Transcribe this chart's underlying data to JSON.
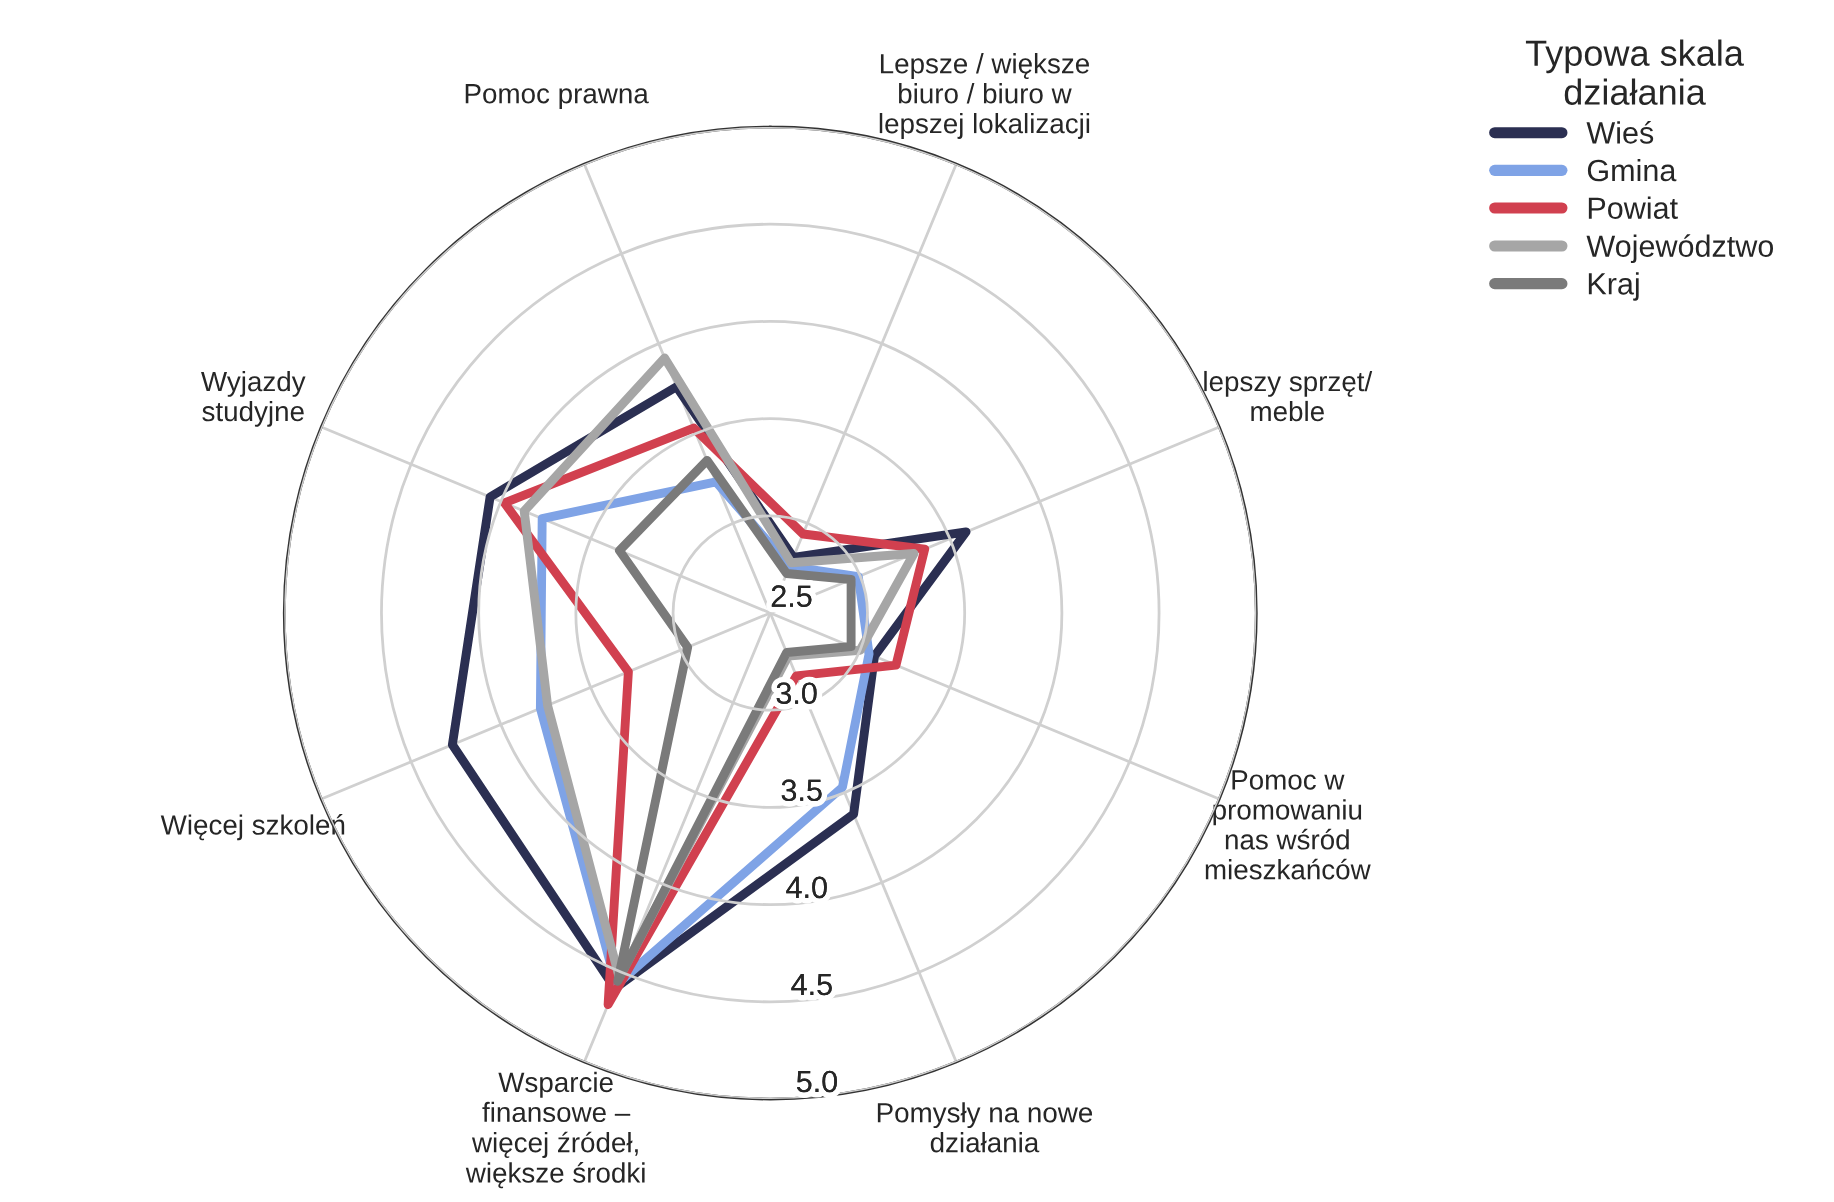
{
  "chart_data": {
    "type": "radar",
    "categories": [
      "Lepsze / większe\nbiuro / biuro w\nlepszej lokalizacji",
      "lepszy sprzęt/\nmeble",
      "Pomoc w\npromowaniu\nnas wśród\nmieszkańców",
      "Pomysły na nowe\ndziałania",
      "Wsparcie\nfinansowe –\nwięcej źródeł,\nwiększe środki",
      "Więcej szkoleń",
      "Wyjazdy\nstudyjne",
      "Pomoc prawna"
    ],
    "legend_title": "Typowa skala\ndziałania",
    "series": [
      {
        "name": "Wieś",
        "color": "#2b2f52",
        "values": [
          2.81,
          3.59,
          3.08,
          3.62,
          4.59,
          4.27,
          4.06,
          3.76
        ]
      },
      {
        "name": "Gmina",
        "color": "#7fa3e6",
        "values": [
          2.76,
          2.99,
          3.05,
          3.47,
          4.57,
          3.78,
          3.77,
          3.23
        ]
      },
      {
        "name": "Powiat",
        "color": "#d1404f",
        "values": [
          2.94,
          3.36,
          3.2,
          2.85,
          4.68,
          3.29,
          3.98,
          3.53
        ]
      },
      {
        "name": "Województwo",
        "color": "#a6a6a6",
        "values": [
          2.78,
          3.3,
          3.0,
          2.74,
          4.53,
          3.74,
          3.87,
          3.92
        ]
      },
      {
        "name": "Kraj",
        "color": "#7a7a7a",
        "values": [
          2.72,
          2.95,
          2.95,
          2.72,
          4.55,
          2.96,
          3.34,
          3.35
        ]
      }
    ],
    "ylim": [
      2.5,
      5.0
    ],
    "yticks": [
      {
        "value": 2.5,
        "label": "2.5"
      },
      {
        "value": 3.0,
        "label": "3.0"
      },
      {
        "value": 3.5,
        "label": "3.5"
      },
      {
        "value": 4.0,
        "label": "4.0"
      },
      {
        "value": 4.5,
        "label": "4.5"
      },
      {
        "value": 5.0,
        "label": "5.0"
      }
    ],
    "grid": true,
    "legend": "top right",
    "line_style": "solid",
    "marker": "none"
  }
}
